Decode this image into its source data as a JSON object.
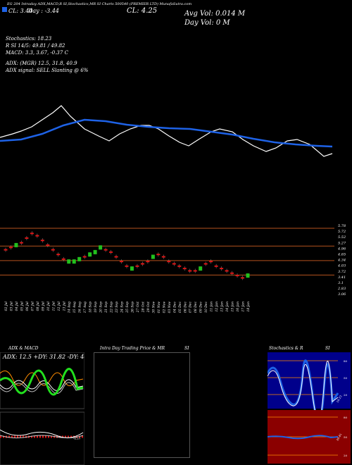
{
  "header": {
    "line1": "EG 204 Intraday ADX,MACD,R SI,Stochastics,MR SI Charts 500540 (PREMIER LTD) MunafaSutra.com",
    "line2_left": "CL: 3.44",
    "line2_mid": "Day : -3.44",
    "line2_cl": "CL: 4.25",
    "line2_l": "L: 3.9",
    "avg_vol": "Avg Vol: 0.014  M",
    "day_vol": "Day Vol: 0   M",
    "stochastics": "Stochastics: 18.23",
    "rsi": "R                SI 14/5: 49.81 / 49.82",
    "macd": "MACD: 3.3,  3.67,  -0.37 C",
    "adx": "ADX:                                (MGR) 12.5,  31.8,  40.9",
    "adx_signal": "ADX  signal: SELL  Slanting @ 6%"
  },
  "price_axis": [
    "5.78",
    "5.72",
    "5.52",
    "5.27",
    "4.96",
    "4.65",
    "4.34",
    "4.03",
    "3.72",
    "3.41",
    "3.1",
    "2.83",
    "3.06"
  ],
  "date_labels": [
    "02 Jul",
    "03 Jul",
    "04 Jul",
    "05 Jul",
    "06 Jul",
    "07 Jul",
    "08 Jul",
    "09 Jul",
    "10 Jul",
    "11 Jul",
    "12 Jul",
    "13 Jul",
    "14 Aug",
    "15 Aug",
    "16 Aug",
    "17 Aug",
    "18 Sep",
    "19 Sep",
    "20 Sep",
    "21 Sep",
    "22 Sep",
    "23 Sep",
    "24 Sep",
    "25 Sep",
    "26 Sep",
    "27 Oct",
    "28 Oct",
    "29 Oct",
    "30 Nov",
    "01 Nov",
    "02 Nov",
    "03 Nov",
    "04 Dec",
    "05 Dec",
    "06 Dec",
    "07 Dec",
    "08 Dec",
    "09 Dec",
    "10 Dec",
    "11 Jan",
    "12 Jan",
    "13 Jan",
    "14 Jan",
    "15 Jan",
    "16 Jan",
    "17 Jan",
    "18 Jan"
  ],
  "panels": {
    "adx_title": "ADX  & MACD",
    "adx_values": "ADX: 12.5  +DY: 31.82  -DY: 40.91",
    "intraday_title": "Intra  Day Trading Price  & MR",
    "intraday_si": "SI",
    "stoch_title": "Stochastics & R",
    "stoch_si": "SI",
    "stoch_ticks": [
      "80",
      "50",
      "20"
    ],
    "stoch_value": "18.23",
    "rsi_ticks": [
      "80",
      "50",
      "20"
    ],
    "rsi_value": "49.81",
    "macd_value": "-0.37"
  },
  "colors": {
    "up": "#22c01e",
    "down": "#e01515",
    "ma": "#1e62e6",
    "price": "#ffffff",
    "level": "#b4521e"
  },
  "chart_data": {
    "type": "line",
    "x_dates": [
      "02 Jul",
      "03 Jul",
      "04 Jul",
      "05 Jul",
      "06 Jul",
      "07 Jul",
      "08 Jul",
      "09 Jul",
      "10 Jul",
      "11 Jul",
      "12 Jul",
      "13 Jul",
      "14 Aug",
      "15 Aug",
      "16 Aug",
      "17 Aug",
      "18 Sep",
      "19 Sep",
      "20 Sep",
      "21 Sep",
      "22 Sep",
      "23 Sep",
      "24 Sep",
      "25 Sep",
      "26 Sep",
      "27 Oct",
      "28 Oct",
      "29 Oct",
      "30 Nov",
      "01 Nov",
      "02 Nov",
      "03 Nov",
      "04 Dec",
      "05 Dec",
      "06 Dec",
      "07 Dec",
      "08 Dec",
      "09 Dec",
      "10 Dec",
      "11 Jan",
      "12 Jan",
      "13 Jan",
      "14 Jan",
      "15 Jan",
      "16 Jan",
      "17 Jan",
      "18 Jan"
    ],
    "candles_y": [
      4.8,
      4.9,
      5.0,
      5.1,
      5.3,
      5.5,
      5.4,
      5.2,
      5.0,
      4.8,
      4.6,
      4.4,
      4.3,
      4.3,
      4.4,
      4.5,
      4.6,
      4.7,
      4.9,
      4.8,
      4.7,
      4.5,
      4.3,
      4.1,
      4.0,
      4.1,
      4.2,
      4.3,
      4.5,
      4.6,
      4.5,
      4.3,
      4.2,
      4.1,
      4.0,
      3.9,
      3.9,
      4.0,
      4.2,
      4.3,
      4.1,
      4.0,
      3.9,
      3.8,
      3.7,
      3.6,
      3.7
    ],
    "candle_color": [
      "d",
      "d",
      "u",
      "d",
      "d",
      "d",
      "d",
      "d",
      "d",
      "d",
      "d",
      "d",
      "u",
      "u",
      "u",
      "d",
      "u",
      "u",
      "u",
      "d",
      "d",
      "d",
      "d",
      "d",
      "u",
      "d",
      "d",
      "d",
      "u",
      "d",
      "d",
      "d",
      "d",
      "d",
      "d",
      "d",
      "d",
      "u",
      "d",
      "d",
      "d",
      "d",
      "d",
      "d",
      "d",
      "d",
      "u"
    ],
    "ylim": [
      2.83,
      5.78
    ],
    "levels": [
      5.72,
      4.96,
      4.34,
      3.72
    ]
  }
}
